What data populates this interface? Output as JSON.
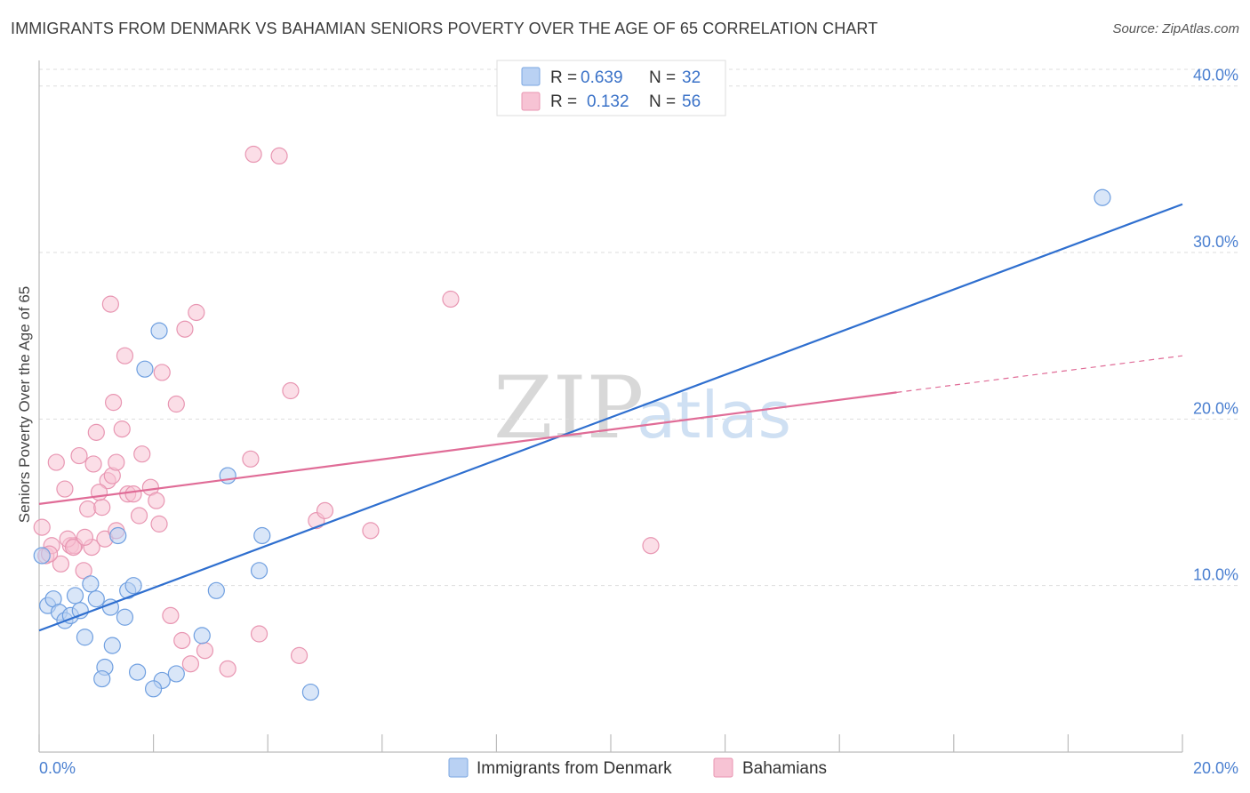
{
  "title": "IMMIGRANTS FROM DENMARK VS BAHAMIAN SENIORS POVERTY OVER THE AGE OF 65 CORRELATION CHART",
  "source": "Source: ZipAtlas.com",
  "watermark": {
    "zip": "ZIP",
    "atlas": "atlas"
  },
  "legend": {
    "r_label": "R =",
    "n_label": "N =",
    "blue": {
      "r": "0.639",
      "n": "32"
    },
    "pink": {
      "r": "0.132",
      "n": "56"
    }
  },
  "bottom_legend": {
    "blue_label": "Immigrants from Denmark",
    "pink_label": "Bahamians"
  },
  "colors": {
    "blue": "#2f6fcf",
    "blue_fill": "#b9d1f3",
    "pink": "#e06c97",
    "pink_fill": "#f7c3d4"
  },
  "chart_data": {
    "type": "scatter",
    "title": "IMMIGRANTS FROM DENMARK VS BAHAMIAN SENIORS POVERTY OVER THE AGE OF 65 CORRELATION CHART",
    "xlabel": "",
    "ylabel": "Seniors Poverty Over the Age of 65",
    "xlim": [
      0,
      20
    ],
    "ylim": [
      0,
      41
    ],
    "x_tick_labels": [
      "0.0%",
      "20.0%"
    ],
    "y_ticks": [
      10,
      20,
      30,
      40
    ],
    "y_tick_labels": [
      "10.0%",
      "20.0%",
      "30.0%",
      "40.0%"
    ],
    "series": [
      {
        "name": "Immigrants from Denmark",
        "color": "blue",
        "trend": {
          "x": [
            0,
            20
          ],
          "y": [
            7.3,
            32.9
          ]
        },
        "points": [
          [
            0.05,
            11.8
          ],
          [
            0.15,
            8.8
          ],
          [
            0.25,
            9.2
          ],
          [
            0.35,
            8.4
          ],
          [
            0.45,
            7.9
          ],
          [
            0.55,
            8.2
          ],
          [
            0.63,
            9.4
          ],
          [
            0.72,
            8.5
          ],
          [
            0.8,
            6.9
          ],
          [
            0.9,
            10.1
          ],
          [
            1.0,
            9.2
          ],
          [
            1.15,
            5.1
          ],
          [
            1.28,
            6.4
          ],
          [
            1.38,
            13.0
          ],
          [
            1.55,
            9.7
          ],
          [
            1.85,
            23.0
          ],
          [
            2.1,
            25.3
          ],
          [
            3.3,
            16.6
          ],
          [
            3.9,
            13.0
          ],
          [
            1.65,
            10.0
          ],
          [
            1.25,
            8.7
          ],
          [
            1.5,
            8.1
          ],
          [
            1.1,
            4.4
          ],
          [
            1.72,
            4.8
          ],
          [
            2.15,
            4.3
          ],
          [
            2.4,
            4.7
          ],
          [
            2.85,
            7.0
          ],
          [
            3.1,
            9.7
          ],
          [
            3.85,
            10.9
          ],
          [
            4.75,
            3.6
          ],
          [
            18.6,
            33.3
          ],
          [
            2.0,
            3.8
          ]
        ]
      },
      {
        "name": "Bahamians",
        "color": "pink",
        "trend": {
          "x": [
            0,
            15
          ],
          "y": [
            14.9,
            21.6
          ]
        },
        "trend_dashed": {
          "x": [
            15,
            20
          ],
          "y": [
            21.6,
            23.8
          ]
        },
        "points": [
          [
            0.05,
            13.5
          ],
          [
            0.12,
            11.8
          ],
          [
            0.22,
            12.4
          ],
          [
            0.3,
            17.4
          ],
          [
            0.38,
            11.3
          ],
          [
            0.45,
            15.8
          ],
          [
            0.55,
            12.4
          ],
          [
            0.62,
            12.4
          ],
          [
            0.7,
            17.8
          ],
          [
            0.78,
            10.9
          ],
          [
            0.85,
            14.6
          ],
          [
            0.92,
            12.3
          ],
          [
            0.95,
            17.3
          ],
          [
            1.0,
            19.2
          ],
          [
            1.1,
            14.7
          ],
          [
            1.15,
            12.8
          ],
          [
            1.2,
            16.3
          ],
          [
            1.28,
            16.6
          ],
          [
            1.35,
            17.4
          ],
          [
            1.45,
            19.4
          ],
          [
            1.5,
            23.8
          ],
          [
            1.55,
            15.5
          ],
          [
            1.65,
            15.5
          ],
          [
            1.75,
            14.2
          ],
          [
            1.8,
            17.9
          ],
          [
            1.95,
            15.9
          ],
          [
            2.05,
            15.1
          ],
          [
            2.1,
            13.7
          ],
          [
            2.15,
            22.8
          ],
          [
            2.3,
            8.2
          ],
          [
            2.4,
            20.9
          ],
          [
            2.5,
            6.7
          ],
          [
            2.55,
            25.4
          ],
          [
            2.65,
            5.3
          ],
          [
            2.75,
            26.4
          ],
          [
            2.9,
            6.1
          ],
          [
            3.3,
            5.0
          ],
          [
            3.7,
            17.6
          ],
          [
            3.75,
            35.9
          ],
          [
            3.85,
            7.1
          ],
          [
            4.2,
            35.8
          ],
          [
            4.4,
            21.7
          ],
          [
            4.55,
            5.8
          ],
          [
            4.85,
            13.9
          ],
          [
            5.0,
            14.5
          ],
          [
            5.8,
            13.3
          ],
          [
            7.2,
            27.2
          ],
          [
            10.7,
            12.4
          ],
          [
            1.25,
            26.9
          ],
          [
            1.3,
            21.0
          ],
          [
            1.35,
            13.3
          ],
          [
            0.18,
            11.9
          ],
          [
            0.5,
            12.8
          ],
          [
            0.6,
            12.3
          ],
          [
            0.8,
            12.9
          ],
          [
            1.05,
            15.6
          ]
        ]
      }
    ]
  },
  "axis_label": "Seniors Poverty Over the Age of 65"
}
